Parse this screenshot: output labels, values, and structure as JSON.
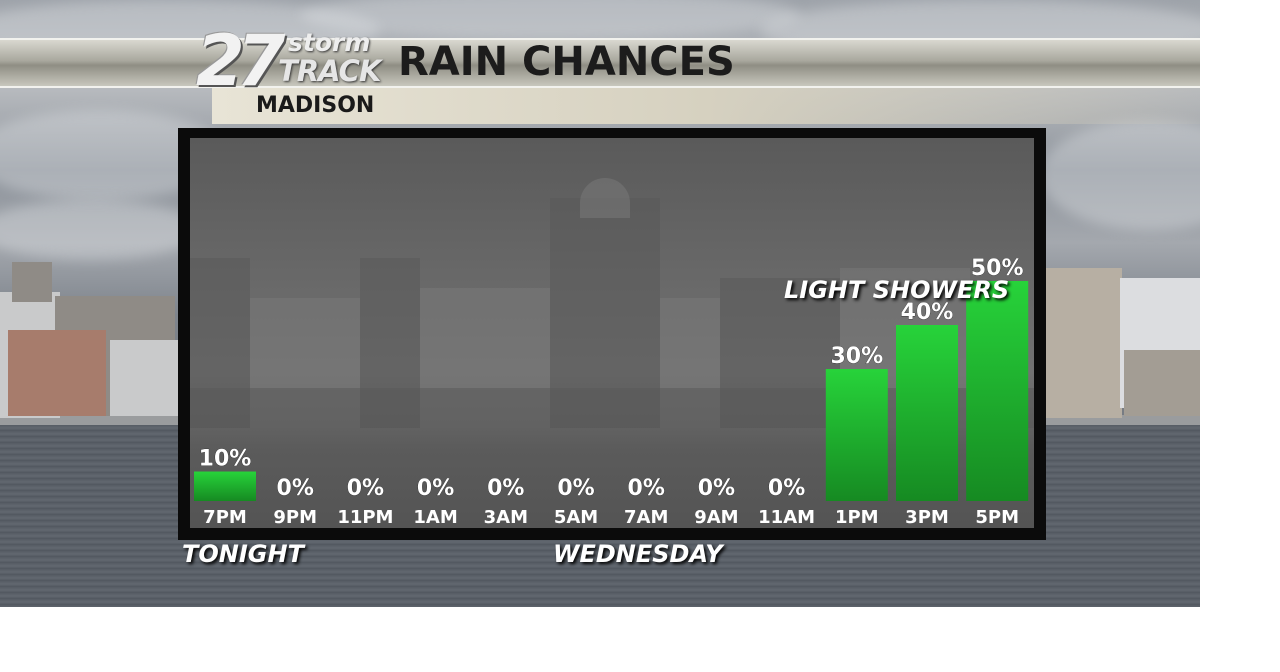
{
  "header": {
    "logo_number": "27",
    "logo_storm": "storm",
    "logo_track": "TRACK",
    "title": "RAIN CHANCES",
    "location": "MADISON"
  },
  "colors": {
    "bar_top": "#27d33a",
    "bar_bottom": "#168a22",
    "panel_border": "#0b0b0b"
  },
  "chart_data": {
    "type": "bar",
    "title": "RAIN CHANCES",
    "categories": [
      "7PM",
      "9PM",
      "11PM",
      "1AM",
      "3AM",
      "5AM",
      "7AM",
      "9AM",
      "11AM",
      "1PM",
      "3PM",
      "5PM"
    ],
    "values": [
      10,
      0,
      0,
      0,
      0,
      0,
      0,
      0,
      0,
      30,
      40,
      50
    ],
    "value_labels": [
      "10%",
      "0%",
      "0%",
      "0%",
      "0%",
      "0%",
      "0%",
      "0%",
      "0%",
      "30%",
      "40%",
      "50%"
    ],
    "unit": "%",
    "ylim": [
      0,
      50
    ],
    "annotation": "LIGHT SHOWERS",
    "day_labels": [
      {
        "text": "TONIGHT",
        "start_index": 0
      },
      {
        "text": "WEDNESDAY",
        "start_index": 5
      }
    ],
    "grid": false,
    "legend": "none"
  }
}
